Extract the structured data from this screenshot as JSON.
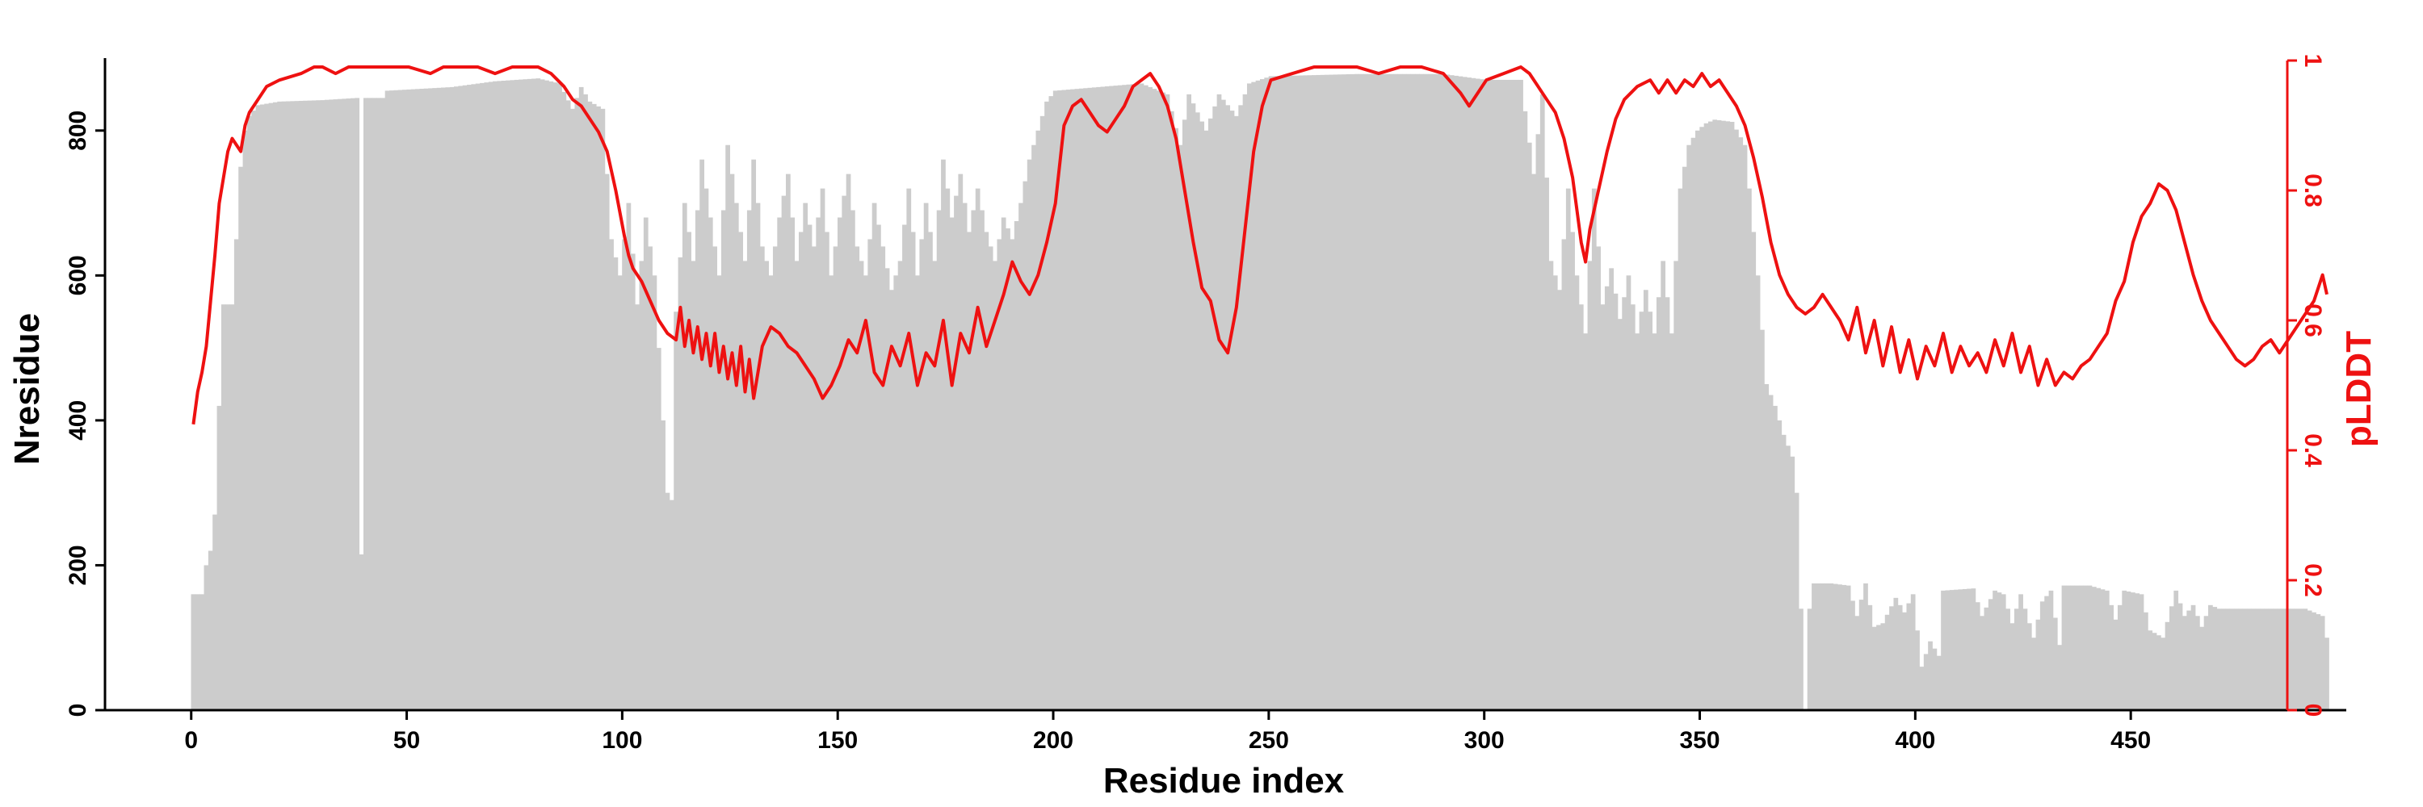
{
  "chart_data": {
    "type": "bar",
    "title": "",
    "xlabel": "Residue index",
    "ylabel": "Nresidue",
    "y2label": "pLDDT",
    "xlim": [
      -20,
      500
    ],
    "ylim": [
      0,
      900
    ],
    "y2lim": [
      0,
      1
    ],
    "x_ticks": [
      0,
      50,
      100,
      150,
      200,
      250,
      300,
      350,
      400,
      450
    ],
    "y_ticks": [
      0,
      200,
      400,
      600,
      800
    ],
    "y2_ticks": [
      0,
      0.2,
      0.4,
      0.6,
      0.8,
      1
    ],
    "legend": "none",
    "grid": false,
    "colors": {
      "bars": "#cccccc",
      "line": "#ee1111",
      "axis": "#000000",
      "y2axis": "#ee1111"
    },
    "nresidue_profile": [
      [
        0,
        160
      ],
      [
        2,
        160
      ],
      [
        3,
        200
      ],
      [
        4,
        220
      ],
      [
        5,
        270
      ],
      [
        6,
        420
      ],
      [
        7,
        560
      ],
      [
        9,
        560
      ],
      [
        10,
        650
      ],
      [
        11,
        750
      ],
      [
        12,
        800
      ],
      [
        13,
        820
      ],
      [
        15,
        835
      ],
      [
        20,
        840
      ],
      [
        30,
        842
      ],
      [
        38,
        845
      ],
      [
        39,
        215
      ],
      [
        40,
        845
      ],
      [
        44,
        845
      ],
      [
        45,
        855
      ],
      [
        60,
        860
      ],
      [
        70,
        868
      ],
      [
        80,
        872
      ],
      [
        85,
        865
      ],
      [
        88,
        830
      ],
      [
        90,
        860
      ],
      [
        92,
        840
      ],
      [
        95,
        830
      ],
      [
        97,
        650
      ],
      [
        99,
        600
      ],
      [
        101,
        700
      ],
      [
        103,
        560
      ],
      [
        105,
        680
      ],
      [
        107,
        600
      ],
      [
        108,
        500
      ],
      [
        109,
        400
      ],
      [
        110,
        300
      ],
      [
        111,
        290
      ],
      [
        112,
        550
      ],
      [
        114,
        700
      ],
      [
        116,
        620
      ],
      [
        118,
        760
      ],
      [
        120,
        680
      ],
      [
        122,
        600
      ],
      [
        124,
        780
      ],
      [
        126,
        700
      ],
      [
        128,
        620
      ],
      [
        130,
        760
      ],
      [
        132,
        640
      ],
      [
        134,
        600
      ],
      [
        136,
        680
      ],
      [
        138,
        740
      ],
      [
        140,
        620
      ],
      [
        142,
        700
      ],
      [
        144,
        640
      ],
      [
        146,
        720
      ],
      [
        148,
        600
      ],
      [
        150,
        680
      ],
      [
        152,
        740
      ],
      [
        154,
        640
      ],
      [
        156,
        600
      ],
      [
        158,
        700
      ],
      [
        160,
        640
      ],
      [
        162,
        580
      ],
      [
        164,
        620
      ],
      [
        166,
        720
      ],
      [
        168,
        600
      ],
      [
        170,
        700
      ],
      [
        172,
        620
      ],
      [
        174,
        760
      ],
      [
        176,
        680
      ],
      [
        178,
        740
      ],
      [
        180,
        660
      ],
      [
        182,
        720
      ],
      [
        184,
        660
      ],
      [
        186,
        620
      ],
      [
        188,
        680
      ],
      [
        190,
        650
      ],
      [
        192,
        700
      ],
      [
        194,
        760
      ],
      [
        196,
        800
      ],
      [
        198,
        840
      ],
      [
        200,
        855
      ],
      [
        210,
        860
      ],
      [
        220,
        865
      ],
      [
        226,
        850
      ],
      [
        229,
        780
      ],
      [
        231,
        850
      ],
      [
        235,
        800
      ],
      [
        238,
        850
      ],
      [
        242,
        820
      ],
      [
        245,
        865
      ],
      [
        250,
        875
      ],
      [
        270,
        878
      ],
      [
        290,
        878
      ],
      [
        300,
        870
      ],
      [
        308,
        870
      ],
      [
        311,
        740
      ],
      [
        313,
        850
      ],
      [
        315,
        620
      ],
      [
        317,
        580
      ],
      [
        319,
        720
      ],
      [
        321,
        600
      ],
      [
        323,
        520
      ],
      [
        325,
        720
      ],
      [
        327,
        560
      ],
      [
        329,
        610
      ],
      [
        331,
        540
      ],
      [
        333,
        600
      ],
      [
        335,
        520
      ],
      [
        337,
        580
      ],
      [
        339,
        520
      ],
      [
        341,
        620
      ],
      [
        343,
        520
      ],
      [
        345,
        720
      ],
      [
        347,
        780
      ],
      [
        349,
        800
      ],
      [
        351,
        810
      ],
      [
        353,
        815
      ],
      [
        357,
        812
      ],
      [
        360,
        780
      ],
      [
        363,
        600
      ],
      [
        365,
        450
      ],
      [
        367,
        420
      ],
      [
        369,
        380
      ],
      [
        371,
        350
      ],
      [
        372,
        300
      ],
      [
        373,
        140
      ],
      [
        374,
        0
      ],
      [
        375,
        140
      ],
      [
        376,
        175
      ],
      [
        380,
        175
      ],
      [
        384,
        172
      ],
      [
        386,
        130
      ],
      [
        388,
        175
      ],
      [
        390,
        115
      ],
      [
        392,
        120
      ],
      [
        395,
        155
      ],
      [
        397,
        135
      ],
      [
        399,
        160
      ],
      [
        401,
        60
      ],
      [
        403,
        95
      ],
      [
        405,
        75
      ],
      [
        406,
        165
      ],
      [
        413,
        168
      ],
      [
        415,
        130
      ],
      [
        418,
        165
      ],
      [
        420,
        160
      ],
      [
        422,
        120
      ],
      [
        424,
        160
      ],
      [
        427,
        100
      ],
      [
        429,
        150
      ],
      [
        431,
        165
      ],
      [
        433,
        90
      ],
      [
        434,
        172
      ],
      [
        440,
        172
      ],
      [
        444,
        165
      ],
      [
        446,
        125
      ],
      [
        448,
        165
      ],
      [
        452,
        160
      ],
      [
        454,
        110
      ],
      [
        457,
        100
      ],
      [
        460,
        165
      ],
      [
        462,
        130
      ],
      [
        464,
        145
      ],
      [
        466,
        115
      ],
      [
        468,
        145
      ],
      [
        470,
        140
      ],
      [
        480,
        140
      ],
      [
        490,
        140
      ],
      [
        494,
        130
      ],
      [
        495,
        100
      ]
    ],
    "plddt_profile": [
      [
        0,
        0.44
      ],
      [
        1,
        0.49
      ],
      [
        2,
        0.52
      ],
      [
        3,
        0.56
      ],
      [
        4,
        0.63
      ],
      [
        5,
        0.7
      ],
      [
        6,
        0.78
      ],
      [
        7,
        0.82
      ],
      [
        8,
        0.86
      ],
      [
        9,
        0.88
      ],
      [
        10,
        0.87
      ],
      [
        11,
        0.86
      ],
      [
        12,
        0.9
      ],
      [
        13,
        0.92
      ],
      [
        15,
        0.94
      ],
      [
        17,
        0.96
      ],
      [
        20,
        0.97
      ],
      [
        25,
        0.98
      ],
      [
        28,
        0.99
      ],
      [
        30,
        0.99
      ],
      [
        33,
        0.98
      ],
      [
        36,
        0.99
      ],
      [
        40,
        0.99
      ],
      [
        45,
        0.99
      ],
      [
        50,
        0.99
      ],
      [
        55,
        0.98
      ],
      [
        58,
        0.99
      ],
      [
        62,
        0.99
      ],
      [
        66,
        0.99
      ],
      [
        70,
        0.98
      ],
      [
        74,
        0.99
      ],
      [
        78,
        0.99
      ],
      [
        80,
        0.99
      ],
      [
        83,
        0.98
      ],
      [
        86,
        0.96
      ],
      [
        88,
        0.94
      ],
      [
        90,
        0.93
      ],
      [
        92,
        0.91
      ],
      [
        94,
        0.89
      ],
      [
        96,
        0.86
      ],
      [
        98,
        0.8
      ],
      [
        100,
        0.73
      ],
      [
        101,
        0.7
      ],
      [
        102,
        0.68
      ],
      [
        104,
        0.66
      ],
      [
        106,
        0.63
      ],
      [
        108,
        0.6
      ],
      [
        110,
        0.58
      ],
      [
        112,
        0.57
      ],
      [
        113,
        0.62
      ],
      [
        114,
        0.56
      ],
      [
        115,
        0.6
      ],
      [
        116,
        0.55
      ],
      [
        117,
        0.59
      ],
      [
        118,
        0.54
      ],
      [
        119,
        0.58
      ],
      [
        120,
        0.53
      ],
      [
        121,
        0.58
      ],
      [
        122,
        0.52
      ],
      [
        123,
        0.56
      ],
      [
        124,
        0.51
      ],
      [
        125,
        0.55
      ],
      [
        126,
        0.5
      ],
      [
        127,
        0.56
      ],
      [
        128,
        0.49
      ],
      [
        129,
        0.54
      ],
      [
        130,
        0.48
      ],
      [
        132,
        0.56
      ],
      [
        134,
        0.59
      ],
      [
        136,
        0.58
      ],
      [
        138,
        0.56
      ],
      [
        140,
        0.55
      ],
      [
        142,
        0.53
      ],
      [
        144,
        0.51
      ],
      [
        146,
        0.48
      ],
      [
        148,
        0.5
      ],
      [
        150,
        0.53
      ],
      [
        152,
        0.57
      ],
      [
        154,
        0.55
      ],
      [
        156,
        0.6
      ],
      [
        158,
        0.52
      ],
      [
        160,
        0.5
      ],
      [
        162,
        0.56
      ],
      [
        164,
        0.53
      ],
      [
        166,
        0.58
      ],
      [
        168,
        0.5
      ],
      [
        170,
        0.55
      ],
      [
        172,
        0.53
      ],
      [
        174,
        0.6
      ],
      [
        176,
        0.5
      ],
      [
        178,
        0.58
      ],
      [
        180,
        0.55
      ],
      [
        182,
        0.62
      ],
      [
        184,
        0.56
      ],
      [
        186,
        0.6
      ],
      [
        188,
        0.64
      ],
      [
        190,
        0.69
      ],
      [
        192,
        0.66
      ],
      [
        194,
        0.64
      ],
      [
        196,
        0.67
      ],
      [
        198,
        0.72
      ],
      [
        200,
        0.78
      ],
      [
        202,
        0.9
      ],
      [
        204,
        0.93
      ],
      [
        206,
        0.94
      ],
      [
        208,
        0.92
      ],
      [
        210,
        0.9
      ],
      [
        212,
        0.89
      ],
      [
        214,
        0.91
      ],
      [
        216,
        0.93
      ],
      [
        218,
        0.96
      ],
      [
        220,
        0.97
      ],
      [
        222,
        0.98
      ],
      [
        224,
        0.96
      ],
      [
        226,
        0.93
      ],
      [
        228,
        0.88
      ],
      [
        230,
        0.8
      ],
      [
        232,
        0.72
      ],
      [
        234,
        0.65
      ],
      [
        236,
        0.63
      ],
      [
        238,
        0.57
      ],
      [
        240,
        0.55
      ],
      [
        242,
        0.62
      ],
      [
        244,
        0.74
      ],
      [
        246,
        0.86
      ],
      [
        248,
        0.93
      ],
      [
        250,
        0.97
      ],
      [
        255,
        0.98
      ],
      [
        260,
        0.99
      ],
      [
        265,
        0.99
      ],
      [
        270,
        0.99
      ],
      [
        275,
        0.98
      ],
      [
        280,
        0.99
      ],
      [
        285,
        0.99
      ],
      [
        290,
        0.98
      ],
      [
        294,
        0.95
      ],
      [
        296,
        0.93
      ],
      [
        298,
        0.95
      ],
      [
        300,
        0.97
      ],
      [
        304,
        0.98
      ],
      [
        308,
        0.99
      ],
      [
        310,
        0.98
      ],
      [
        312,
        0.96
      ],
      [
        314,
        0.94
      ],
      [
        316,
        0.92
      ],
      [
        318,
        0.88
      ],
      [
        320,
        0.82
      ],
      [
        321,
        0.77
      ],
      [
        322,
        0.72
      ],
      [
        323,
        0.69
      ],
      [
        324,
        0.74
      ],
      [
        326,
        0.8
      ],
      [
        328,
        0.86
      ],
      [
        330,
        0.91
      ],
      [
        332,
        0.94
      ],
      [
        335,
        0.96
      ],
      [
        338,
        0.97
      ],
      [
        340,
        0.95
      ],
      [
        342,
        0.97
      ],
      [
        344,
        0.95
      ],
      [
        346,
        0.97
      ],
      [
        348,
        0.96
      ],
      [
        350,
        0.98
      ],
      [
        352,
        0.96
      ],
      [
        354,
        0.97
      ],
      [
        356,
        0.95
      ],
      [
        358,
        0.93
      ],
      [
        360,
        0.9
      ],
      [
        362,
        0.85
      ],
      [
        364,
        0.79
      ],
      [
        366,
        0.72
      ],
      [
        368,
        0.67
      ],
      [
        370,
        0.64
      ],
      [
        372,
        0.62
      ],
      [
        374,
        0.61
      ],
      [
        376,
        0.62
      ],
      [
        378,
        0.64
      ],
      [
        380,
        0.62
      ],
      [
        382,
        0.6
      ],
      [
        384,
        0.57
      ],
      [
        386,
        0.62
      ],
      [
        388,
        0.55
      ],
      [
        390,
        0.6
      ],
      [
        392,
        0.53
      ],
      [
        394,
        0.59
      ],
      [
        396,
        0.52
      ],
      [
        398,
        0.57
      ],
      [
        400,
        0.51
      ],
      [
        402,
        0.56
      ],
      [
        404,
        0.53
      ],
      [
        406,
        0.58
      ],
      [
        408,
        0.52
      ],
      [
        410,
        0.56
      ],
      [
        412,
        0.53
      ],
      [
        414,
        0.55
      ],
      [
        416,
        0.52
      ],
      [
        418,
        0.57
      ],
      [
        420,
        0.53
      ],
      [
        422,
        0.58
      ],
      [
        424,
        0.52
      ],
      [
        426,
        0.56
      ],
      [
        428,
        0.5
      ],
      [
        430,
        0.54
      ],
      [
        432,
        0.5
      ],
      [
        434,
        0.52
      ],
      [
        436,
        0.51
      ],
      [
        438,
        0.53
      ],
      [
        440,
        0.54
      ],
      [
        442,
        0.56
      ],
      [
        444,
        0.58
      ],
      [
        446,
        0.63
      ],
      [
        448,
        0.66
      ],
      [
        450,
        0.72
      ],
      [
        452,
        0.76
      ],
      [
        454,
        0.78
      ],
      [
        456,
        0.81
      ],
      [
        458,
        0.8
      ],
      [
        460,
        0.77
      ],
      [
        462,
        0.72
      ],
      [
        464,
        0.67
      ],
      [
        466,
        0.63
      ],
      [
        468,
        0.6
      ],
      [
        470,
        0.58
      ],
      [
        472,
        0.56
      ],
      [
        474,
        0.54
      ],
      [
        476,
        0.53
      ],
      [
        478,
        0.54
      ],
      [
        480,
        0.56
      ],
      [
        482,
        0.57
      ],
      [
        484,
        0.55
      ],
      [
        486,
        0.57
      ],
      [
        488,
        0.59
      ],
      [
        490,
        0.61
      ],
      [
        492,
        0.63
      ],
      [
        494,
        0.67
      ],
      [
        495,
        0.64
      ]
    ]
  }
}
